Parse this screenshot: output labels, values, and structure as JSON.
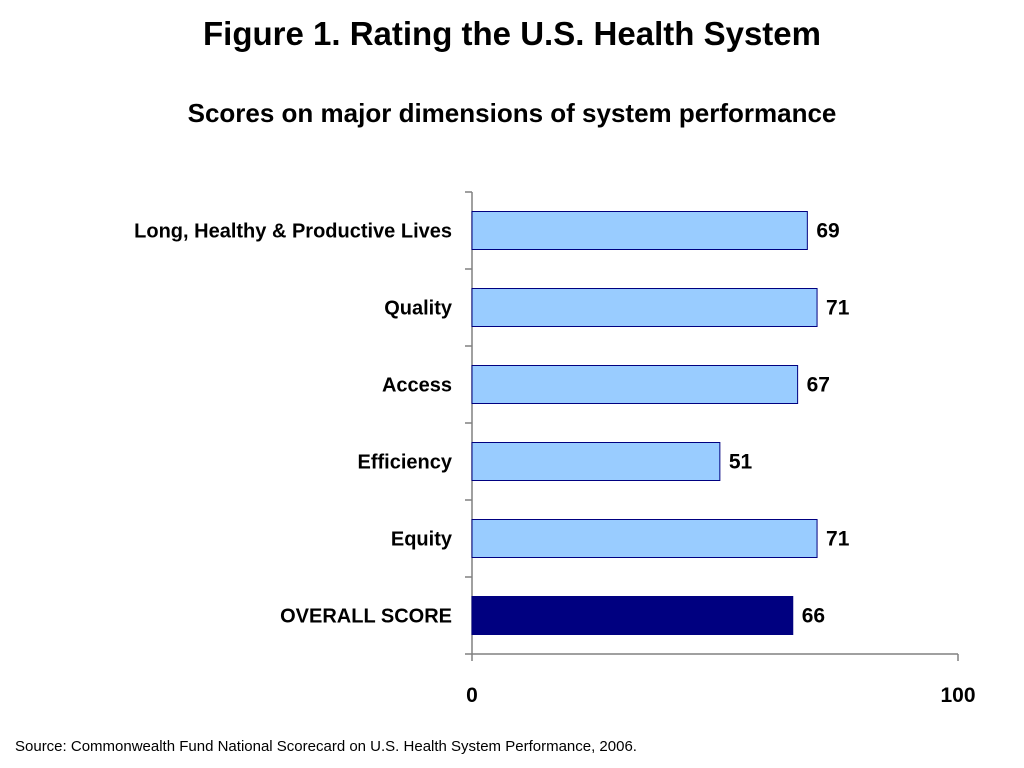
{
  "title": "Figure 1. Rating the U.S. Health System",
  "subtitle": "Scores on major dimensions of system performance",
  "source": "Source: Commonwealth Fund National Scorecard on U.S. Health System Performance, 2006.",
  "colors": {
    "bar": "#99ccff",
    "highlight_bar": "#000080",
    "bar_border": "#000080",
    "axis": "#808080"
  },
  "chart_data": {
    "type": "bar",
    "orientation": "horizontal",
    "title": "Figure 1. Rating the U.S. Health System",
    "subtitle": "Scores on major dimensions of system performance",
    "xlabel": "",
    "ylabel": "",
    "categories": [
      "Long, Healthy & Productive Lives",
      "Quality",
      "Access",
      "Efficiency",
      "Equity",
      "OVERALL SCORE"
    ],
    "values": [
      69,
      71,
      67,
      51,
      71,
      66
    ],
    "data_labels": [
      "69",
      "71",
      "67",
      "51",
      "71",
      "66"
    ],
    "highlight": [
      "OVERALL SCORE"
    ],
    "xlim": [
      0,
      100
    ],
    "x_ticks": [
      "0",
      "100"
    ],
    "grid": false,
    "legend": "none"
  }
}
